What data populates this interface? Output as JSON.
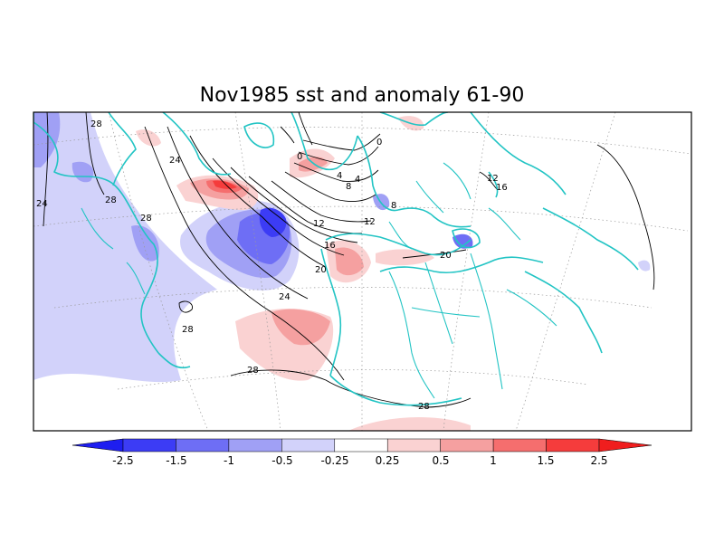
{
  "title": "Nov1985 sst and anomaly 61-90",
  "colorbar": {
    "labels": [
      "-2.5",
      "-1.5",
      "-1",
      "-0.5",
      "-0.25",
      "0.25",
      "0.5",
      "1",
      "1.5",
      "2.5"
    ],
    "colors": [
      "#1e1ef0",
      "#3c3cf5",
      "#6e6ef5",
      "#a0a0f5",
      "#d2d2fa",
      "#ffffff",
      "#fad2d2",
      "#f5a0a0",
      "#f56e6e",
      "#f53c3c",
      "#f01e1e"
    ]
  },
  "contour_labels": [
    "0",
    "0",
    "4",
    "4",
    "8",
    "8",
    "12",
    "12",
    "12",
    "16",
    "16",
    "20",
    "20",
    "24",
    "24",
    "24",
    "28",
    "28",
    "28",
    "28",
    "28",
    "28"
  ],
  "colors": {
    "coastline": "#22c4c4",
    "contour": "#000000",
    "grid": "#9a9a9a"
  }
}
